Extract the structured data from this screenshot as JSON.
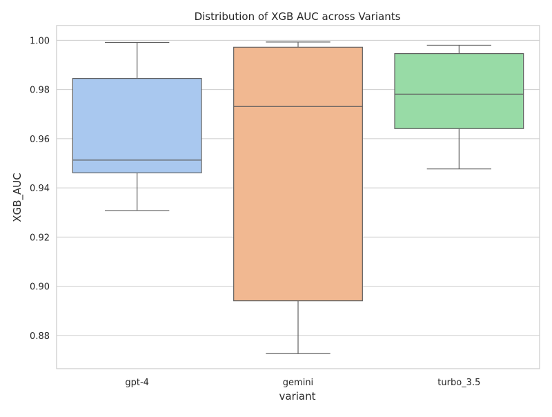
{
  "chart_data": {
    "type": "box",
    "title": "Distribution of XGB AUC across Variants",
    "xlabel": "variant",
    "ylabel": "XGB_AUC",
    "ylim": [
      0.8665,
      1.006
    ],
    "yticks": [
      0.88,
      0.9,
      0.92,
      0.94,
      0.96,
      0.98,
      1.0
    ],
    "ytick_labels": [
      "0.88",
      "0.90",
      "0.92",
      "0.94",
      "0.96",
      "0.98",
      "1.00"
    ],
    "grid": true,
    "categories": [
      "gpt-4",
      "gemini",
      "turbo_3.5"
    ],
    "boxes": [
      {
        "category": "gpt-4",
        "whisker_low": 0.9308,
        "q1": 0.9461,
        "median": 0.9513,
        "q3": 0.9845,
        "whisker_high": 0.9991,
        "color": "#a9c8ef"
      },
      {
        "category": "gemini",
        "whisker_low": 0.8726,
        "q1": 0.8941,
        "median": 0.9731,
        "q3": 0.9972,
        "whisker_high": 0.9993,
        "color": "#f1b891"
      },
      {
        "category": "turbo_3.5",
        "whisker_low": 0.9477,
        "q1": 0.9641,
        "median": 0.9781,
        "q3": 0.9946,
        "whisker_high": 0.998,
        "color": "#98dba6"
      }
    ],
    "line_color": "#5f5f5f",
    "grid_color": "#cccccc",
    "frame_color": "#cccccc"
  }
}
